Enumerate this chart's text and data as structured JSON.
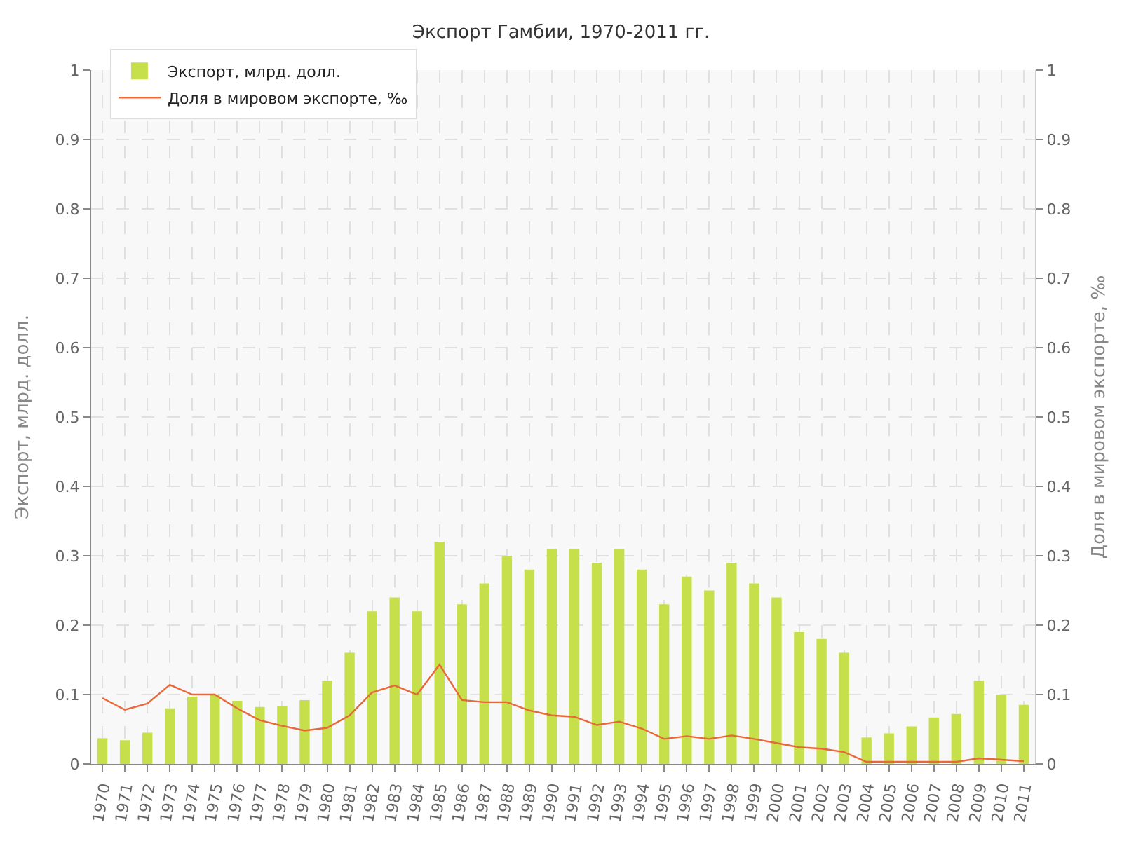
{
  "chart_data": {
    "type": "bar",
    "title": "Экспорт Гамбии, 1970-2011 гг.",
    "ylabel": "Экспорт, млрд. долл.",
    "y2label": "Доля в мировом экспорте, ‰",
    "categories": [
      "1970",
      "1971",
      "1972",
      "1973",
      "1974",
      "1975",
      "1976",
      "1977",
      "1978",
      "1979",
      "1980",
      "1981",
      "1982",
      "1983",
      "1984",
      "1985",
      "1986",
      "1987",
      "1988",
      "1989",
      "1990",
      "1991",
      "1992",
      "1993",
      "1994",
      "1995",
      "1996",
      "1997",
      "1998",
      "1999",
      "2000",
      "2001",
      "2002",
      "2003",
      "2004",
      "2005",
      "2006",
      "2007",
      "2008",
      "2009",
      "2010",
      "2011"
    ],
    "series": [
      {
        "name": "Экспорт, млрд. долл.",
        "color": "#c5e04a",
        "values": [
          0.037,
          0.034,
          0.045,
          0.08,
          0.097,
          0.1,
          0.091,
          0.082,
          0.083,
          0.092,
          0.12,
          0.16,
          0.22,
          0.24,
          0.22,
          0.32,
          0.23,
          0.26,
          0.3,
          0.28,
          0.31,
          0.31,
          0.29,
          0.31,
          0.28,
          0.23,
          0.27,
          0.25,
          0.29,
          0.26,
          0.24,
          0.19,
          0.18,
          0.16,
          0.038,
          0.044,
          0.054,
          0.067,
          0.072,
          0.12,
          0.1,
          0.085
        ]
      },
      {
        "name": "Доля в мировом экспорте, ‰",
        "type": "line",
        "axis": "y2",
        "color": "#e8683a",
        "values": [
          0.095,
          0.078,
          0.087,
          0.114,
          0.1,
          0.1,
          0.08,
          0.063,
          0.055,
          0.048,
          0.052,
          0.07,
          0.103,
          0.113,
          0.1,
          0.143,
          0.092,
          0.089,
          0.089,
          0.077,
          0.07,
          0.068,
          0.056,
          0.061,
          0.051,
          0.036,
          0.04,
          0.036,
          0.041,
          0.036,
          0.03,
          0.024,
          0.022,
          0.017,
          0.003,
          0.003,
          0.003,
          0.003,
          0.003,
          0.008,
          0.006,
          0.004
        ]
      }
    ],
    "ylim": [
      0,
      1
    ],
    "yticks": [
      0,
      0.1,
      0.2,
      0.3,
      0.4,
      0.5,
      0.6,
      0.7,
      0.8,
      0.9,
      1
    ],
    "y2lim": [
      0,
      1
    ],
    "y2ticks": [
      0,
      0.1,
      0.2,
      0.3,
      0.4,
      0.5,
      0.6,
      0.7,
      0.8,
      0.9,
      1
    ],
    "grid": true,
    "legend": "top left",
    "marker": "none",
    "line_style": "solid"
  }
}
